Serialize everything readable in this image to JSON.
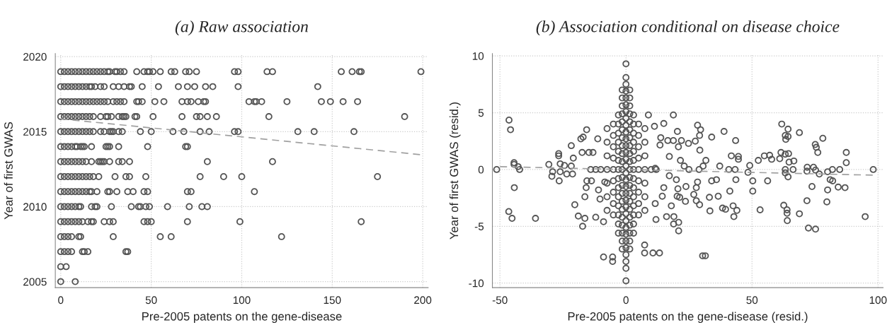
{
  "chart_data": [
    {
      "type": "scatter",
      "title": "(a) Raw association",
      "xlabel": "Pre-2005 patents on the gene-disease",
      "ylabel": "Year of first GWAS",
      "xlim": [
        -3,
        203
      ],
      "ylim": [
        2004.6,
        2020.2
      ],
      "xticks": [
        0,
        50,
        100,
        150,
        200
      ],
      "yticks": [
        2005,
        2010,
        2015,
        2020
      ],
      "grid": true,
      "marker": "circle",
      "series": [
        {
          "color": "#555555",
          "x": [
            0,
            2,
            4,
            6,
            8,
            10,
            12,
            14,
            16,
            18,
            20,
            22,
            24,
            26,
            27,
            30,
            31,
            32,
            33,
            35,
            42,
            46,
            48,
            49,
            51,
            55,
            61,
            63,
            69,
            71,
            75,
            96,
            98,
            114,
            117,
            155,
            161,
            165,
            166,
            199
          ],
          "values": [
            2019,
            2019,
            2019,
            2019,
            2019,
            2019,
            2019,
            2019,
            2019,
            2019,
            2019,
            2019,
            2019,
            2019,
            2019,
            2019,
            2019,
            null,
            2019,
            2019,
            2019,
            2019,
            2019,
            2019,
            2019,
            2019,
            2019,
            2019,
            2019,
            2019,
            2019,
            2019,
            2019,
            2019,
            2019,
            2019,
            2019,
            2019,
            2019,
            2019
          ]
        },
        {
          "color": "#555555",
          "x": [
            0,
            2,
            4,
            6,
            8,
            10,
            12,
            14,
            16,
            17,
            19,
            22,
            24,
            29,
            32,
            35,
            38,
            39,
            45,
            54,
            65,
            70,
            74,
            80,
            84,
            98,
            142
          ],
          "values": [
            2018,
            2018,
            2018,
            2018,
            2018,
            2018,
            2018,
            2018,
            2018,
            2018,
            2018,
            2018,
            2018,
            2018,
            2018,
            2018,
            2018,
            2018,
            2018,
            2018,
            2018,
            2018,
            2018,
            2018,
            2018,
            2018,
            2018
          ]
        },
        {
          "color": "#555555",
          "x": [
            0,
            2,
            4,
            6,
            8,
            10,
            12,
            14,
            16,
            18,
            20,
            22,
            24,
            26,
            29,
            31,
            33,
            35,
            42,
            43,
            45,
            52,
            57,
            67,
            70,
            72,
            76,
            79,
            80,
            104,
            107,
            108,
            111,
            125,
            144,
            149,
            156,
            164
          ],
          "values": [
            2017,
            2017,
            2017,
            2017,
            2017,
            2017,
            2017,
            2017,
            2017,
            2017,
            2017,
            2017,
            2017,
            2017,
            2017,
            2017,
            2017,
            2017,
            2017,
            2017,
            2017,
            2017,
            2017,
            2017,
            2017,
            2017,
            2017,
            2017,
            2017,
            2017,
            2017,
            2017,
            2017,
            2017,
            2017,
            2017,
            2017,
            2017
          ]
        },
        {
          "color": "#555555",
          "x": [
            0,
            2,
            4,
            6,
            8,
            10,
            12,
            14,
            16,
            18,
            22,
            25,
            26,
            28,
            32,
            34,
            35,
            36,
            41,
            42,
            51,
            67,
            75,
            77,
            81,
            86,
            115,
            190
          ],
          "values": [
            2016,
            2016,
            2016,
            2016,
            2016,
            2016,
            2016,
            2016,
            2016,
            2016,
            2016,
            2016,
            2016,
            2016,
            2016,
            2016,
            2016,
            2016,
            2016,
            2016,
            2016,
            2016,
            2016,
            2016,
            2016,
            2016,
            2016,
            2016
          ]
        },
        {
          "color": "#555555",
          "x": [
            0,
            2,
            4,
            6,
            8,
            10,
            12,
            14,
            16,
            18,
            22,
            24,
            27,
            28,
            29,
            32,
            34,
            44,
            50,
            62,
            68,
            77,
            82,
            96,
            98,
            131,
            140,
            162
          ],
          "values": [
            2015,
            2015,
            2015,
            2015,
            2015,
            2015,
            2015,
            2015,
            2015,
            2015,
            2015,
            2015,
            2015,
            2015,
            2015,
            2015,
            2015,
            2015,
            2015,
            2015,
            2015,
            2015,
            2015,
            2015,
            2015,
            2015,
            2015,
            2015
          ]
        },
        {
          "color": "#555555",
          "x": [
            0,
            2,
            4,
            6,
            8,
            9,
            11,
            12,
            13,
            17,
            25,
            26,
            27,
            32,
            48,
            69,
            70
          ],
          "values": [
            2014,
            2014,
            2014,
            2014,
            2014,
            2014,
            2014,
            2014,
            2014,
            2014,
            2014,
            2014,
            2014,
            2014,
            2014,
            2014,
            2014
          ]
        },
        {
          "color": "#555555",
          "x": [
            0,
            2,
            4,
            6,
            8,
            10,
            12,
            14,
            17,
            21,
            22,
            23,
            24,
            27,
            32,
            34,
            38,
            81,
            117
          ],
          "values": [
            2013,
            2013,
            2013,
            2013,
            2013,
            2013,
            2013,
            2013,
            2013,
            2013,
            2013,
            2013,
            2013,
            2013,
            2013,
            2013,
            2013,
            2013,
            2013
          ]
        },
        {
          "color": "#555555",
          "x": [
            0,
            2,
            4,
            6,
            8,
            10,
            12,
            14,
            16,
            18,
            21,
            30,
            36,
            38,
            47,
            77,
            90,
            100,
            175
          ],
          "values": [
            2012,
            2012,
            2012,
            2012,
            2012,
            2012,
            2012,
            2012,
            2012,
            2012,
            2012,
            2012,
            2012,
            2012,
            2012,
            2012,
            2012,
            2012,
            2012
          ]
        },
        {
          "color": "#555555",
          "x": [
            0,
            2,
            4,
            6,
            8,
            10,
            12,
            14,
            16,
            17,
            20,
            26,
            27,
            31,
            37,
            40,
            46,
            48,
            70,
            72,
            107
          ],
          "values": [
            2011,
            2011,
            2011,
            2011,
            2011,
            2011,
            2011,
            2011,
            2011,
            2011,
            2011,
            2011,
            2011,
            2011,
            2011,
            2011,
            2011,
            2011,
            2011,
            2011,
            2011
          ]
        },
        {
          "color": "#555555",
          "x": [
            0,
            2,
            4,
            6,
            8,
            10,
            11,
            17,
            19,
            20,
            28,
            39,
            43,
            44,
            47,
            49,
            59,
            71,
            78,
            81
          ],
          "values": [
            2010,
            2010,
            2010,
            2010,
            2010,
            2010,
            2010,
            2010,
            2010,
            2010,
            2010,
            2010,
            2010,
            2010,
            2010,
            2010,
            2010,
            2010,
            2010,
            2010
          ]
        },
        {
          "color": "#555555",
          "x": [
            0,
            2,
            4,
            6,
            8,
            10,
            12,
            15,
            17,
            18,
            24,
            27,
            29,
            46,
            48,
            50,
            70,
            99,
            166
          ],
          "values": [
            2009,
            2009,
            2009,
            2009,
            2009,
            2009,
            2009,
            2009,
            2009,
            2009,
            2009,
            2009,
            2009,
            2009,
            2009,
            2009,
            2009,
            2009,
            2009
          ]
        },
        {
          "color": "#555555",
          "x": [
            0,
            2,
            4,
            6,
            10,
            11,
            29,
            55,
            61,
            122
          ],
          "values": [
            2008,
            2008,
            2008,
            2008,
            2008,
            2008,
            2008,
            2008,
            2008,
            2008
          ]
        },
        {
          "color": "#555555",
          "x": [
            0,
            2,
            4,
            6,
            12,
            13,
            15,
            36,
            37
          ],
          "values": [
            2007,
            2007,
            2007,
            2007,
            2007,
            2007,
            2007,
            2007,
            2007
          ]
        },
        {
          "color": "#555555",
          "x": [
            0,
            3
          ],
          "values": [
            2006,
            2006
          ]
        },
        {
          "color": "#555555",
          "x": [
            0,
            8
          ],
          "values": [
            2005,
            2005
          ]
        },
        {
          "type": "line",
          "line_style": "dashed",
          "marker": "none",
          "color": "#a0a0a0",
          "x": [
            0,
            200
          ],
          "values": [
            2015.85,
            2013.45
          ]
        }
      ]
    },
    {
      "type": "scatter",
      "title": "(b) Association conditional on disease choice",
      "xlabel": "Pre-2005 patents on the gene-disease (resid.)",
      "ylabel": "Year of first GWAS (resid.)",
      "xlim": [
        -53,
        102
      ],
      "ylim": [
        -10.4,
        10.2
      ],
      "xticks": [
        -50,
        0,
        50,
        100
      ],
      "yticks": [
        -10,
        -5,
        0,
        5,
        10
      ],
      "grid": true,
      "marker": "circle",
      "series": [
        {
          "color": "#555555",
          "x": [
            0,
            0,
            0,
            0,
            0,
            0,
            0,
            0,
            0,
            0,
            0,
            0,
            0,
            0,
            0,
            0,
            0,
            0,
            0,
            0,
            0,
            0,
            0,
            0,
            0,
            0,
            0,
            0,
            0,
            0,
            0
          ],
          "values": [
            -9.8,
            -8.7,
            -8.1,
            -7.5,
            -6.9,
            -6.3,
            -5.7,
            -5.1,
            -4.5,
            -3.9,
            -3.3,
            -2.7,
            -2.1,
            -1.5,
            -0.9,
            -0.3,
            0.3,
            0.9,
            1.5,
            2.1,
            2.7,
            3.3,
            3.9,
            4.5,
            5.1,
            5.7,
            6.3,
            6.9,
            7.5,
            8.1,
            9.3
          ]
        },
        {
          "color": "#555555",
          "x": [
            -1.5,
            -1.5,
            -1.5,
            -1.5,
            -1.5,
            -1.5,
            -1.5,
            -1.5,
            -1.5,
            -1.5,
            -1.5,
            -1.5,
            -1.5,
            -1.5,
            -1.5,
            -1.5,
            -1.5,
            -1.5,
            -1.5,
            -1.5,
            -1.5
          ],
          "values": [
            -7,
            -6.3,
            -5.6,
            -4.9,
            -4.2,
            -3.5,
            -2.8,
            -2.1,
            -1.4,
            -0.7,
            0,
            0.7,
            1.4,
            2.1,
            2.8,
            3.5,
            4.2,
            4.9,
            5.6,
            6.3,
            7
          ]
        },
        {
          "color": "#555555",
          "x": [
            1.5,
            1.5,
            1.5,
            1.5,
            1.5,
            1.5,
            1.5,
            1.5,
            1.5,
            1.5,
            1.5,
            1.5,
            1.5,
            1.5,
            1.5,
            1.5,
            1.5,
            1.5,
            1.5,
            1.5,
            1.5
          ],
          "values": [
            -7,
            -6.3,
            -5.6,
            -4.9,
            -4.2,
            -3.5,
            -2.8,
            -2.1,
            -1.4,
            -0.7,
            0,
            0.7,
            1.4,
            2.1,
            2.8,
            3.5,
            4.2,
            4.9,
            5.6,
            6.3,
            7
          ]
        },
        {
          "color": "#555555",
          "x": [
            -3,
            -3,
            -3,
            -3,
            -3,
            -3,
            -3,
            -3,
            -3,
            -3,
            -3,
            -3,
            -3,
            -3
          ],
          "values": [
            -5.6,
            -4.8,
            -4,
            -3.2,
            -2.4,
            -1.6,
            -0.8,
            0,
            0.8,
            1.6,
            2.4,
            3.2,
            4,
            4.8
          ]
        },
        {
          "color": "#555555",
          "x": [
            3,
            3,
            3,
            3,
            3,
            3,
            3,
            3,
            3,
            3,
            3,
            3,
            3,
            3
          ],
          "values": [
            -5.6,
            -4.8,
            -4,
            -3.2,
            -2.4,
            -1.6,
            -0.8,
            0,
            0.8,
            1.6,
            2.4,
            3.2,
            4,
            4.8
          ]
        },
        {
          "color": "#555555",
          "x": [
            -5,
            -5,
            -5,
            -5,
            -5,
            -5,
            -5,
            -5,
            -5
          ],
          "values": [
            -4,
            -3,
            -2,
            -1,
            0,
            1,
            2,
            3,
            4
          ]
        },
        {
          "color": "#555555",
          "x": [
            5,
            5,
            5,
            5,
            5,
            5,
            5,
            5,
            5
          ],
          "values": [
            -4,
            -3,
            -2,
            -1,
            0,
            1,
            2,
            3,
            4
          ]
        },
        {
          "color": "#555555",
          "x": [
            -7.5,
            -7.5,
            -7.5,
            -7.5,
            -7.5,
            -7.5,
            -7.5,
            7.5,
            7.5,
            7.5,
            7.5,
            7.5,
            7.5,
            7.5,
            -14,
            -12,
            -10,
            10,
            12
          ],
          "values": [
            -3.6,
            -2.4,
            -1.2,
            0,
            1.2,
            2.4,
            3.6,
            -3.6,
            -2.4,
            -1.2,
            0,
            1.2,
            2.4,
            3.6,
            0,
            0,
            0,
            0,
            0
          ]
        },
        {
          "color": "#555555",
          "x": [
            -51.3,
            -46.4,
            -45.8,
            -44.4,
            -44.4,
            -42.8,
            -42.2,
            -44.3,
            -46.5,
            -45.2,
            -35.9,
            -30.6,
            -29.4,
            -29.1,
            -26.7,
            -26.7,
            -26.5,
            -26.1,
            -26.1,
            -24.4,
            -23.5,
            -21.7,
            -20.9,
            -21.7,
            -21.2,
            -20.3,
            -18.9,
            -17.9,
            -17,
            -17.4,
            -17.2,
            -16.3,
            -16.3,
            -15.6,
            -15.8,
            -14.7,
            -15.5,
            -13.1,
            -13.7,
            -12,
            -11.2,
            -10.9,
            -8.9,
            -8.9,
            -5.3,
            -5.3,
            -8.4,
            -10.3
          ],
          "values": [
            0,
            4.35,
            3.5,
            0.6,
            0.45,
            0.25,
            0,
            -1.6,
            -3.7,
            -4.3,
            -4.3,
            0.45,
            -0.6,
            -0.2,
            1.4,
            1.2,
            -1.0,
            -0.2,
            0.5,
            0.35,
            -0.4,
            2.1,
            1.0,
            0.3,
            -0.4,
            -3.1,
            -4.1,
            2.7,
            2.85,
            1.5,
            -5.0,
            -4.3,
            -2.4,
            3.5,
            -1.6,
            1.5,
            -1.0,
            1.5,
            -1.0,
            -4.2,
            2.7,
            -1.8,
            -4.6,
            -7.7,
            -7.7,
            -8.1,
            -1.1,
            -2.6
          ]
        },
        {
          "color": "#555555",
          "x": [
            8.9,
            18.8,
            15,
            11.3,
            20.4,
            28.4,
            29.6,
            29.2,
            34,
            38.9,
            43.5,
            22,
            24.8,
            27.5,
            29.3,
            37.2,
            41.8,
            44.6,
            44.6,
            49.1,
            52.5,
            54.9,
            57,
            57.8,
            61.5,
            61,
            61.8,
            63.2,
            64.3,
            64.3,
            63.4,
            64.5,
            63.2,
            64.7,
            66.6,
            66.3,
            63.2,
            63.2,
            64.3,
            68.8,
            75.1,
            75.5,
            76.1,
            78.1,
            87.4,
            87.4,
            71.9,
            71.8,
            74.4,
            75.2,
            76.7,
            80,
            81.9,
            84.8,
            98.1,
            81,
            82,
            84.2,
            86.9,
            73.8,
            80,
            79.7,
            71.8,
            68.8,
            72.4,
            75.2,
            94.9,
            63.9,
            62.6,
            63.9,
            64
          ],
          "values": [
            4.8,
            4.8,
            4.05,
            3.8,
            3.35,
            3.9,
            3.5,
            3.0,
            2.85,
            3.35,
            2.55,
            2.55,
            2.3,
            2.5,
            1.7,
            0.3,
            1.2,
            1.15,
            0.9,
            0.35,
            0.8,
            1.2,
            1.25,
            0.9,
            1.5,
            0.95,
            4.0,
            3.0,
            3.55,
            2.9,
            2.65,
            1.4,
            1.35,
            0.65,
            0.75,
            0,
            0,
            -0.3,
            -0.65,
            3.25,
            2.2,
            1.95,
            1.5,
            2.75,
            1.5,
            0.6,
            0.2,
            -0.15,
            0.2,
            -0.05,
            -0.4,
            -0.2,
            0,
            0,
            0,
            -0.9,
            -1.0,
            -1.55,
            -1.6,
            -1.5,
            -1.8,
            -2.85,
            -2.75,
            -3.9,
            -5.15,
            -5.25,
            -4.15,
            -3.55,
            -3.15,
            -3.85,
            -4.5
          ]
        },
        {
          "color": "#555555",
          "x": [
            50.3,
            50.3,
            48.4,
            53.2,
            56.2,
            43.6,
            40.8,
            43.3,
            41.2,
            36.6,
            33.1,
            33.3,
            38.3,
            39.5,
            42.5,
            42.8,
            44,
            35.9,
            34,
            30.4,
            31.5,
            28.4,
            27.9,
            27.9,
            29.2,
            26.9,
            23.8,
            20.9,
            20.9,
            18.9,
            19,
            18,
            16.1,
            13.3,
            10.7,
            7.4,
            7.4,
            11.9,
            11.6,
            14.4,
            20.3,
            21.3,
            23.6,
            31.7,
            30.6,
            29,
            25,
            23.1,
            21.6,
            20.8,
            18.8,
            16.6,
            13.8,
            13.5,
            17.2,
            17.2,
            20,
            20.6,
            15,
            11.6
          ],
          "values": [
            -1.0,
            -1.9,
            -0.25,
            -3.55,
            -1.0,
            -0.9,
            0,
            0,
            -1.9,
            -2.35,
            -2.45,
            -3.65,
            -3.4,
            -3.5,
            -3.2,
            -4.15,
            -3.6,
            -0.9,
            -1.0,
            -7.6,
            -7.6,
            -1.1,
            -1.6,
            -2.75,
            -3.1,
            -2.2,
            -1.5,
            -4.65,
            -5.4,
            -4.8,
            -4.15,
            -3.2,
            -4.15,
            -7.35,
            -7.35,
            -7.35,
            -6.65,
            -4.4,
            -3.0,
            -2.35,
            -2.35,
            -2.45,
            -2.8,
            0.8,
            0.3,
            0,
            0,
            0.3,
            0.8,
            2.0,
            2.55,
            2.55,
            2.8,
            2.15,
            1.15,
            -0.55,
            -0.9,
            -1.7,
            -1.6,
            0.1
          ]
        },
        {
          "type": "line",
          "line_style": "dashed",
          "marker": "none",
          "color": "#a0a0a0",
          "x": [
            -50,
            98
          ],
          "values": [
            0.25,
            -0.5
          ]
        }
      ]
    }
  ]
}
